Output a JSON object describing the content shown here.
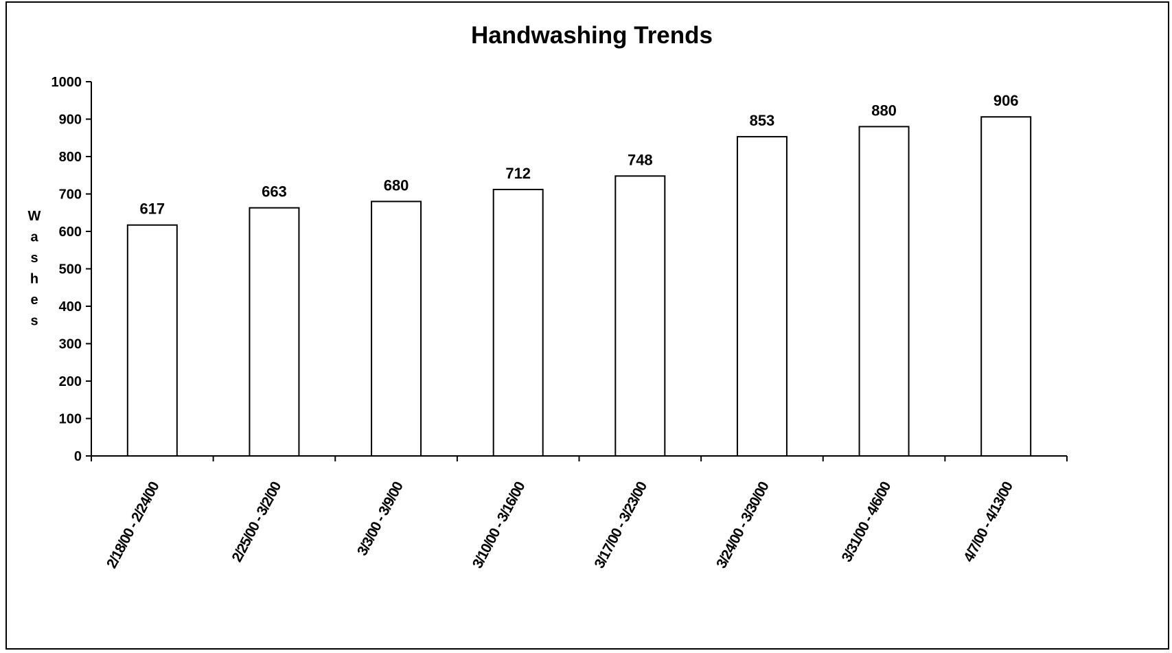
{
  "chart_data": {
    "type": "bar",
    "title": "Handwashing Trends",
    "xlabel": "",
    "ylabel": "Washes",
    "ylim": [
      0,
      1000
    ],
    "yticks": [
      0,
      100,
      200,
      300,
      400,
      500,
      600,
      700,
      800,
      900,
      1000
    ],
    "categories": [
      "2/18/00 - 2/24/00",
      "2/25/00 - 3/2/00",
      "3/3/00 - 3/9/00",
      "3/10/00 - 3/16/00",
      "3/17/00 - 3/23/00",
      "3/24/00 - 3/30/00",
      "3/31/00 - 4/6/00",
      "4/7/00 - 4/13/00"
    ],
    "values": [
      617,
      663,
      680,
      712,
      748,
      853,
      880,
      906
    ],
    "data_labels": [
      "617",
      "663",
      "680",
      "712",
      "748",
      "853",
      "880",
      "906"
    ],
    "grid": false,
    "legend": "none",
    "bar_fill": "#ffffff",
    "bar_stroke": "#000000"
  }
}
